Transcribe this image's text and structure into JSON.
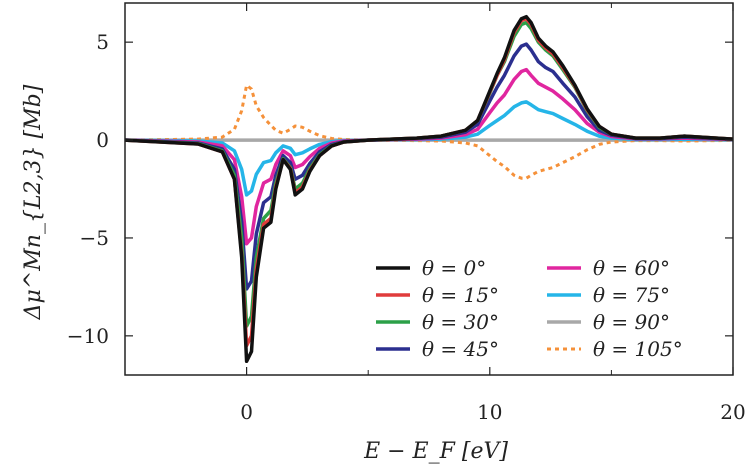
{
  "chart_data": {
    "type": "line",
    "xlabel": "E − E_F [eV]",
    "ylabel": "Δμ^Mn_{L2,3} [Mb]",
    "xlim": [
      -5,
      20
    ],
    "ylim": [
      -12,
      7
    ],
    "x_ticks": [
      0,
      10,
      20
    ],
    "x_tick_labels": [
      "0",
      "10",
      "20"
    ],
    "y_ticks": [
      -10,
      -5,
      0,
      5
    ],
    "y_tick_labels": [
      "−10",
      "−5",
      "0",
      "5"
    ],
    "legend_position": "bottom-right",
    "grid": false,
    "series": [
      {
        "name": "θ = 0°",
        "color": "#111111",
        "style": "solid",
        "x": [
          -5,
          -2,
          -1,
          -0.5,
          -0.2,
          0,
          0.2,
          0.4,
          0.7,
          1,
          1.2,
          1.5,
          1.8,
          2,
          2.3,
          2.6,
          3,
          3.5,
          4,
          5,
          6,
          7,
          8,
          9,
          9.5,
          10,
          10.3,
          10.6,
          11,
          11.3,
          11.5,
          11.7,
          12,
          12.3,
          12.6,
          13,
          13.5,
          14,
          14.5,
          15,
          16,
          17,
          18,
          20
        ],
        "y": [
          0,
          -0.2,
          -0.6,
          -2,
          -6,
          -11.3,
          -10.8,
          -7,
          -4.5,
          -4.2,
          -2.5,
          -1.0,
          -1.5,
          -2.8,
          -2.5,
          -1.6,
          -0.8,
          -0.3,
          -0.1,
          0,
          0.05,
          0.1,
          0.2,
          0.5,
          1,
          2.5,
          3.4,
          4.2,
          5.6,
          6.2,
          6.3,
          6.0,
          5.2,
          4.8,
          4.5,
          3.8,
          2.8,
          1.6,
          0.7,
          0.3,
          0.1,
          0.1,
          0.2,
          0.05
        ]
      },
      {
        "name": "θ = 15°",
        "color": "#e03c3c",
        "style": "solid",
        "x": [
          -5,
          -2,
          -1,
          -0.5,
          -0.2,
          0,
          0.2,
          0.4,
          0.7,
          1,
          1.2,
          1.5,
          1.8,
          2,
          2.3,
          2.6,
          3,
          3.5,
          4,
          5,
          6,
          7,
          8,
          9,
          9.5,
          10,
          10.3,
          10.6,
          11,
          11.3,
          11.5,
          11.7,
          12,
          12.3,
          12.6,
          13,
          13.5,
          14,
          14.5,
          15,
          16,
          17,
          18,
          20
        ],
        "y": [
          0,
          -0.2,
          -0.6,
          -2,
          -5.8,
          -10.5,
          -10.0,
          -6.6,
          -4.3,
          -4.0,
          -2.4,
          -1.0,
          -1.45,
          -2.7,
          -2.4,
          -1.55,
          -0.8,
          -0.3,
          -0.1,
          0,
          0.05,
          0.1,
          0.2,
          0.5,
          1,
          2.45,
          3.3,
          4.1,
          5.5,
          6.1,
          6.2,
          5.9,
          5.1,
          4.7,
          4.4,
          3.7,
          2.75,
          1.55,
          0.7,
          0.3,
          0.1,
          0.1,
          0.2,
          0.05
        ]
      },
      {
        "name": "θ = 30°",
        "color": "#2ca048",
        "style": "solid",
        "x": [
          -5,
          -2,
          -1,
          -0.5,
          -0.2,
          0,
          0.2,
          0.4,
          0.7,
          1,
          1.2,
          1.5,
          1.8,
          2,
          2.3,
          2.6,
          3,
          3.5,
          4,
          5,
          6,
          7,
          8,
          9,
          9.5,
          10,
          10.3,
          10.6,
          11,
          11.3,
          11.5,
          11.7,
          12,
          12.3,
          12.6,
          13,
          13.5,
          14,
          14.5,
          15,
          16,
          17,
          18,
          20
        ],
        "y": [
          0,
          -0.18,
          -0.55,
          -1.8,
          -5.0,
          -9.5,
          -9.0,
          -6.0,
          -4.0,
          -3.6,
          -2.2,
          -0.95,
          -1.4,
          -2.5,
          -2.2,
          -1.45,
          -0.75,
          -0.28,
          -0.1,
          0,
          0.05,
          0.1,
          0.2,
          0.5,
          1,
          2.4,
          3.3,
          4.0,
          5.3,
          5.9,
          6.0,
          5.7,
          5.0,
          4.6,
          4.3,
          3.6,
          2.7,
          1.5,
          0.65,
          0.3,
          0.1,
          0.1,
          0.2,
          0.05
        ]
      },
      {
        "name": "θ = 45°",
        "color": "#2b2f8f",
        "style": "solid",
        "x": [
          -5,
          -2,
          -1,
          -0.5,
          -0.2,
          0,
          0.2,
          0.4,
          0.7,
          1,
          1.2,
          1.5,
          1.8,
          2,
          2.3,
          2.6,
          3,
          3.5,
          4,
          5,
          6,
          7,
          8,
          9,
          9.5,
          10,
          10.3,
          10.6,
          11,
          11.3,
          11.5,
          11.7,
          12,
          12.3,
          12.6,
          13,
          13.5,
          14,
          14.5,
          15,
          16,
          17,
          18,
          20
        ],
        "y": [
          0,
          -0.15,
          -0.45,
          -1.5,
          -4.2,
          -7.6,
          -7.2,
          -4.8,
          -3.2,
          -2.9,
          -1.8,
          -0.8,
          -1.15,
          -2.0,
          -1.8,
          -1.2,
          -0.6,
          -0.22,
          -0.08,
          0,
          0.04,
          0.08,
          0.15,
          0.4,
          0.8,
          2.0,
          2.7,
          3.3,
          4.3,
          4.8,
          4.9,
          4.6,
          4.0,
          3.7,
          3.5,
          2.9,
          2.2,
          1.2,
          0.5,
          0.25,
          0.08,
          0.08,
          0.15,
          0.04
        ]
      },
      {
        "name": "θ = 60°",
        "color": "#e0269f",
        "style": "solid",
        "x": [
          -5,
          -2,
          -1,
          -0.5,
          -0.2,
          0,
          0.2,
          0.4,
          0.7,
          1,
          1.2,
          1.5,
          1.8,
          2,
          2.3,
          2.6,
          3,
          3.5,
          4,
          5,
          6,
          7,
          8,
          9,
          9.5,
          10,
          10.3,
          10.6,
          11,
          11.3,
          11.5,
          11.7,
          12,
          12.3,
          12.6,
          13,
          13.5,
          14,
          14.5,
          15,
          16,
          17,
          18,
          20
        ],
        "y": [
          0,
          -0.1,
          -0.3,
          -1.0,
          -2.9,
          -5.3,
          -5.0,
          -3.4,
          -2.2,
          -2.0,
          -1.25,
          -0.55,
          -0.8,
          -1.4,
          -1.25,
          -0.85,
          -0.42,
          -0.15,
          -0.05,
          0,
          0.03,
          0.05,
          0.1,
          0.28,
          0.55,
          1.4,
          1.9,
          2.3,
          3.1,
          3.5,
          3.6,
          3.3,
          2.9,
          2.7,
          2.5,
          2.1,
          1.55,
          0.85,
          0.4,
          0.18,
          0.06,
          0.06,
          0.1,
          0.03
        ]
      },
      {
        "name": "θ = 75°",
        "color": "#25b5e8",
        "style": "solid",
        "x": [
          -5,
          -2,
          -1,
          -0.5,
          -0.2,
          0,
          0.2,
          0.4,
          0.7,
          1,
          1.2,
          1.5,
          1.8,
          2,
          2.3,
          2.6,
          3,
          3.5,
          4,
          5,
          6,
          7,
          8,
          9,
          9.5,
          10,
          10.3,
          10.6,
          11,
          11.3,
          11.5,
          11.7,
          12,
          12.3,
          12.6,
          13,
          13.5,
          14,
          14.5,
          15,
          16,
          17,
          18,
          20
        ],
        "y": [
          0,
          -0.05,
          -0.15,
          -0.55,
          -1.5,
          -2.8,
          -2.6,
          -1.75,
          -1.15,
          -1.05,
          -0.65,
          -0.3,
          -0.42,
          -0.75,
          -0.65,
          -0.45,
          -0.22,
          -0.08,
          -0.03,
          0,
          0.02,
          0.03,
          0.05,
          0.15,
          0.3,
          0.75,
          1.0,
          1.25,
          1.7,
          1.9,
          1.95,
          1.8,
          1.55,
          1.45,
          1.35,
          1.1,
          0.8,
          0.45,
          0.2,
          0.1,
          0.03,
          0.03,
          0.05,
          0.02
        ]
      },
      {
        "name": "θ = 90°",
        "color": "#a8a8a8",
        "style": "solid",
        "x": [
          -5,
          0,
          5,
          10,
          15,
          20
        ],
        "y": [
          0,
          0,
          0,
          0,
          0,
          0
        ]
      },
      {
        "name": "θ = 105°",
        "color": "#f5913a",
        "style": "dotted",
        "x": [
          -5,
          -2,
          -1,
          -0.5,
          -0.2,
          0,
          0.2,
          0.4,
          0.7,
          1,
          1.2,
          1.5,
          1.8,
          2,
          2.3,
          2.6,
          3,
          3.5,
          4,
          5,
          6,
          7,
          8,
          9,
          9.5,
          10,
          10.3,
          10.6,
          11,
          11.3,
          11.5,
          11.7,
          12,
          12.3,
          12.6,
          13,
          13.5,
          14,
          14.5,
          15,
          16,
          17,
          18,
          20
        ],
        "y": [
          0,
          0.05,
          0.15,
          0.55,
          1.5,
          2.8,
          2.6,
          1.75,
          1.15,
          0.75,
          0.5,
          0.35,
          0.55,
          0.72,
          0.65,
          0.45,
          0.22,
          0.08,
          0.03,
          0,
          -0.02,
          -0.03,
          -0.05,
          -0.15,
          -0.3,
          -0.8,
          -1.1,
          -1.35,
          -1.8,
          -1.95,
          -1.95,
          -1.8,
          -1.6,
          -1.5,
          -1.4,
          -1.15,
          -0.85,
          -0.5,
          -0.22,
          -0.1,
          -0.03,
          -0.03,
          -0.05,
          -0.02
        ]
      }
    ]
  }
}
